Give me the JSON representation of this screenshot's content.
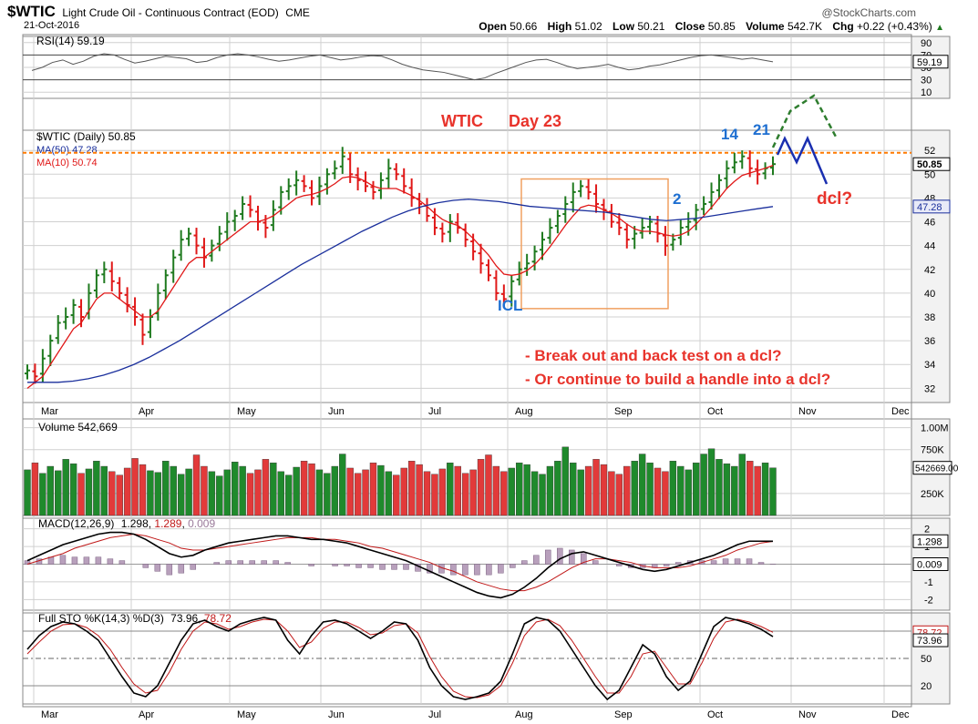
{
  "header": {
    "symbol": "$WTIC",
    "name": "Light Crude Oil - Continuous Contract (EOD)",
    "exchange": "CME",
    "date": "21-Oct-2016",
    "watermark": "@StockCharts.com",
    "quote": {
      "open_label": "Open",
      "open": "50.66",
      "high_label": "High",
      "high": "51.02",
      "low_label": "Low",
      "low": "50.21",
      "close_label": "Close",
      "close": "50.85",
      "volume_label": "Volume",
      "volume": "542.7K",
      "chg_label": "Chg",
      "chg": "+0.22 (+0.43%)",
      "chg_arrow": "▲"
    }
  },
  "colors": {
    "up_bar": "#1f7a1f",
    "down_bar": "#e01818",
    "ma50": "#1a2f9c",
    "ma10": "#e01818",
    "annotation_red": "#e8332b",
    "annotation_blue": "#1e6fd1",
    "projection_green": "#2e7d2e",
    "projection_blue": "#1a2fb0",
    "resistance": "#ff7a00",
    "box": "#f0a060",
    "grid": "#d0d0d0",
    "panel_bg": "#f2f2f2"
  },
  "months": [
    "Mar",
    "Apr",
    "May",
    "Jun",
    "Jul",
    "Aug",
    "Sep",
    "Oct",
    "Nov",
    "Dec"
  ],
  "chart_data": [
    {
      "type": "line",
      "panel": "rsi",
      "legend": "RSI(14) 59.19",
      "current_label": "59.19",
      "ticks": [
        "90",
        "70",
        "50",
        "30",
        "10"
      ],
      "ylim": [
        0,
        100
      ],
      "reference_lines": [
        70,
        30
      ],
      "series": [
        {
          "name": "RSI(14)",
          "values": [
            45,
            50,
            58,
            62,
            55,
            60,
            68,
            72,
            70,
            63,
            57,
            60,
            64,
            68,
            66,
            64,
            58,
            60,
            66,
            70,
            72,
            70,
            67,
            63,
            60,
            62,
            65,
            68,
            70,
            66,
            62,
            64,
            67,
            69,
            68,
            62,
            55,
            50,
            46,
            44,
            42,
            38,
            34,
            30,
            33,
            40,
            46,
            52,
            58,
            62,
            63,
            58,
            52,
            48,
            50,
            52,
            55,
            50,
            46,
            48,
            52,
            54,
            58,
            62,
            66,
            69,
            70,
            68,
            66,
            63,
            65,
            62,
            59
          ]
        }
      ]
    },
    {
      "type": "candlestick",
      "panel": "price",
      "legend": {
        "symbol_line": "$WTIC (Daily) 50.85",
        "ma50": "MA(50) 47.28",
        "ma10": "MA(10) 50.74"
      },
      "ticks": [
        "52",
        "50",
        "48",
        "46",
        "44",
        "42",
        "40",
        "38",
        "36",
        "34",
        "32"
      ],
      "ylim": [
        30.8,
        53.7
      ],
      "close_label": "50.85",
      "ma50_label": "47.28",
      "close_values": [
        33.5,
        33,
        34.5,
        36,
        37.5,
        38,
        39,
        38,
        40,
        41.5,
        42,
        41,
        40,
        39,
        38,
        36.5,
        38,
        40,
        41.5,
        43,
        44.5,
        45,
        44,
        43,
        44,
        45,
        46,
        46.5,
        47.5,
        47,
        46,
        45.5,
        47,
        48.5,
        49,
        49.5,
        49,
        48,
        49,
        50,
        50.5,
        51.5,
        50,
        49.5,
        49,
        48.5,
        49.5,
        50.5,
        50,
        49,
        48,
        47.5,
        46.5,
        45.5,
        45,
        46,
        45.5,
        44.5,
        43.5,
        42.5,
        41.5,
        40,
        39.5,
        41,
        42,
        42.5,
        43.5,
        44.5,
        45.5,
        46.5,
        47.5,
        48.5,
        49,
        48.5,
        47.5,
        47,
        46,
        45.5,
        44.5,
        45,
        45.5,
        46,
        45,
        44,
        44.5,
        45.5,
        46,
        47,
        47.5,
        48.5,
        49.5,
        50.5,
        51,
        51.5,
        50.5,
        50,
        50.5,
        50.85
      ],
      "ma10_values": [
        32,
        32.5,
        33,
        34,
        35,
        36,
        37,
        37.5,
        38.5,
        39.5,
        40,
        40,
        39.5,
        39,
        38.5,
        38,
        38,
        38.5,
        39.5,
        40.5,
        41.5,
        42.5,
        43,
        43,
        43.5,
        44,
        44.5,
        45,
        45.5,
        46,
        46,
        46.2,
        46.5,
        47,
        47.5,
        48,
        48.2,
        48.3,
        48.5,
        48.8,
        49.2,
        49.7,
        49.8,
        49.7,
        49.4,
        49,
        48.8,
        48.8,
        48.8,
        48.5,
        48.2,
        47.8,
        47.3,
        46.7,
        46.2,
        45.9,
        45.7,
        45.2,
        44.6,
        43.9,
        43.2,
        42.3,
        41.6,
        41.5,
        41.6,
        41.9,
        42.4,
        43.1,
        43.9,
        44.8,
        45.7,
        46.5,
        47.2,
        47.4,
        47.3,
        47,
        46.7,
        46.3,
        45.8,
        45.4,
        45.2,
        45.2,
        45.1,
        44.9,
        44.8,
        44.9,
        45.2,
        45.8,
        46.5,
        47.2,
        48,
        48.8,
        49.4,
        49.9,
        50.1,
        50.3,
        50.5,
        50.74
      ],
      "ma50_values": [
        32.5,
        32.5,
        32.5,
        32.6,
        32.8,
        33.1,
        33.5,
        34,
        34.6,
        35.3,
        36,
        36.8,
        37.6,
        38.4,
        39.2,
        40,
        40.8,
        41.6,
        42.4,
        43.1,
        43.8,
        44.5,
        45.2,
        45.8,
        46.4,
        46.9,
        47.3,
        47.6,
        47.8,
        47.9,
        47.8,
        47.7,
        47.5,
        47.3,
        47.2,
        47.1,
        47,
        46.9,
        46.8,
        46.6,
        46.4,
        46.2,
        46.1,
        46.2,
        46.3,
        46.5,
        46.7,
        46.9,
        47.1,
        47.28
      ],
      "resistance": 51.8,
      "annotations": [
        "WTIC",
        "Day 23",
        "14",
        "21",
        "2",
        "ICL",
        "dcl?",
        "- Break out and back test on a dcl?",
        "- Or continue to build a handle into a dcl?"
      ]
    },
    {
      "type": "bar",
      "panel": "volume",
      "legend": "Volume 542,669",
      "ticks": [
        "1.00M",
        "750K",
        "250K"
      ],
      "current_label": "542669.00",
      "ylim": [
        0,
        1100000
      ],
      "values": [
        520000,
        600000,
        480000,
        560000,
        510000,
        640000,
        590000,
        480000,
        530000,
        620000,
        560000,
        500000,
        460000,
        540000,
        650000,
        580000,
        510000,
        490000,
        620000,
        560000,
        470000,
        530000,
        690000,
        560000,
        500000,
        450000,
        520000,
        610000,
        560000,
        480000,
        520000,
        640000,
        600000,
        500000,
        460000,
        550000,
        620000,
        590000,
        520000,
        480000,
        560000,
        700000,
        540000,
        480000,
        520000,
        600000,
        570000,
        500000,
        460000,
        540000,
        620000,
        580000,
        500000,
        470000,
        530000,
        600000,
        560000,
        480000,
        520000,
        640000,
        690000,
        560000,
        500000,
        540000,
        600000,
        580000,
        500000,
        470000,
        560000,
        620000,
        780000,
        600000,
        520000,
        560000,
        640000,
        580000,
        500000,
        470000,
        560000,
        620000,
        700000,
        600000,
        540000,
        500000,
        620000,
        560000,
        520000,
        600000,
        700000,
        760000,
        640000,
        590000,
        560000,
        700000,
        620000,
        560000,
        600000,
        542669
      ]
    },
    {
      "type": "line",
      "panel": "macd",
      "legend": "MACD(12,26,9) 1.298, 1.289, 0.009",
      "legend_parts": {
        "label": "MACD(12,26,9)",
        "macd": "1.298",
        "signal": "1.289",
        "hist": "0.009"
      },
      "ticks": [
        "2",
        "1",
        "0",
        "-1",
        "-2"
      ],
      "ylim": [
        -2.6,
        2.6
      ],
      "macd_label": "1.298",
      "hist_label": "0.009",
      "series": [
        {
          "name": "MACD",
          "values": [
            0.2,
            0.5,
            0.8,
            1.1,
            1.3,
            1.5,
            1.7,
            1.8,
            1.8,
            1.7,
            1.4,
            1.0,
            0.6,
            0.4,
            0.5,
            0.8,
            1.0,
            1.2,
            1.3,
            1.4,
            1.5,
            1.6,
            1.6,
            1.5,
            1.4,
            1.4,
            1.3,
            1.2,
            1.0,
            0.8,
            0.6,
            0.4,
            0.2,
            -0.1,
            -0.4,
            -0.7,
            -1.0,
            -1.3,
            -1.6,
            -1.8,
            -1.9,
            -1.7,
            -1.3,
            -0.8,
            -0.2,
            0.3,
            0.6,
            0.7,
            0.5,
            0.3,
            0.1,
            -0.1,
            -0.3,
            -0.4,
            -0.3,
            -0.1,
            0.1,
            0.3,
            0.5,
            0.8,
            1.1,
            1.3,
            1.3,
            1.298
          ]
        },
        {
          "name": "Signal",
          "values": [
            0.0,
            0.2,
            0.4,
            0.6,
            0.9,
            1.1,
            1.3,
            1.5,
            1.6,
            1.7,
            1.6,
            1.4,
            1.2,
            0.9,
            0.8,
            0.8,
            0.9,
            1.0,
            1.1,
            1.2,
            1.3,
            1.4,
            1.5,
            1.5,
            1.5,
            1.4,
            1.4,
            1.3,
            1.2,
            1.0,
            0.9,
            0.7,
            0.5,
            0.3,
            0.1,
            -0.2,
            -0.4,
            -0.7,
            -1.0,
            -1.2,
            -1.4,
            -1.5,
            -1.5,
            -1.3,
            -1.0,
            -0.6,
            -0.2,
            0.1,
            0.3,
            0.3,
            0.2,
            0.1,
            -0.1,
            -0.2,
            -0.2,
            -0.2,
            -0.1,
            0.1,
            0.3,
            0.5,
            0.8,
            1.0,
            1.2,
            1.289
          ]
        }
      ]
    },
    {
      "type": "line",
      "panel": "stochastic",
      "legend": "Full STO %K(14,3) %D(3) 73.96, 78.72",
      "legend_parts": {
        "label": "Full STO %K(14,3) %D(3)",
        "k": "73.96",
        "d": "78.72"
      },
      "ticks": [
        "80",
        "50",
        "20"
      ],
      "ylim": [
        0,
        100
      ],
      "k_label": "73.96",
      "d_label": "78.72",
      "series": [
        {
          "name": "%K",
          "values": [
            60,
            75,
            85,
            90,
            88,
            80,
            70,
            50,
            30,
            12,
            8,
            20,
            45,
            70,
            88,
            92,
            85,
            80,
            88,
            92,
            95,
            92,
            70,
            55,
            75,
            90,
            92,
            88,
            80,
            72,
            80,
            90,
            88,
            70,
            40,
            20,
            8,
            5,
            8,
            12,
            25,
            55,
            88,
            95,
            92,
            80,
            60,
            40,
            20,
            5,
            15,
            40,
            65,
            55,
            30,
            15,
            25,
            55,
            85,
            95,
            92,
            88,
            82,
            73.96
          ]
        },
        {
          "name": "%D",
          "values": [
            55,
            68,
            80,
            87,
            88,
            84,
            75,
            60,
            40,
            22,
            12,
            15,
            35,
            60,
            80,
            90,
            88,
            82,
            85,
            90,
            93,
            92,
            80,
            62,
            68,
            83,
            90,
            90,
            84,
            76,
            78,
            86,
            88,
            78,
            52,
            30,
            14,
            8,
            7,
            10,
            20,
            45,
            75,
            90,
            93,
            86,
            70,
            50,
            30,
            12,
            12,
            30,
            55,
            58,
            40,
            22,
            22,
            45,
            72,
            90,
            93,
            90,
            85,
            78.72
          ]
        }
      ]
    }
  ]
}
